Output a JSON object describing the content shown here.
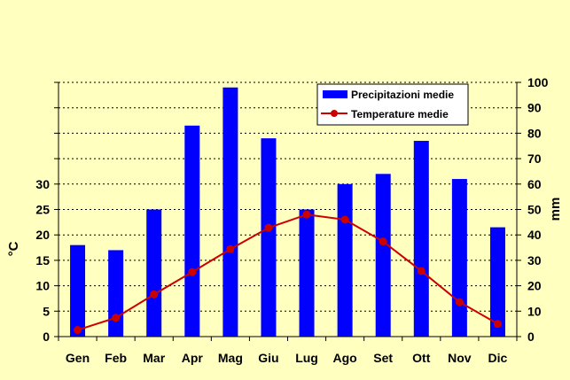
{
  "chart_data": {
    "type": "bar",
    "categories": [
      "Gen",
      "Feb",
      "Mar",
      "Apr",
      "Mag",
      "Giu",
      "Lug",
      "Ago",
      "Set",
      "Ott",
      "Nov",
      "Dic"
    ],
    "series": [
      {
        "name": "Precipitazioni medie",
        "type": "bar",
        "axis": "right",
        "color": "#0000ff",
        "values": [
          36,
          34,
          50,
          83,
          98,
          78,
          50,
          60,
          64,
          77,
          62,
          43
        ]
      },
      {
        "name": "Temperature medie",
        "type": "line",
        "axis": "left",
        "color": "#cc0000",
        "values": [
          1.3,
          3.7,
          8.3,
          12.7,
          17.2,
          21.4,
          24,
          23,
          18.7,
          12.9,
          6.8,
          2.5
        ]
      }
    ],
    "y_left": {
      "label": "°C",
      "ticks": [
        0,
        5,
        10,
        15,
        20,
        25,
        30
      ],
      "range": [
        0,
        50
      ]
    },
    "y_right": {
      "label": "mm",
      "ticks": [
        0,
        10,
        20,
        30,
        40,
        50,
        60,
        70,
        80,
        90,
        100
      ],
      "range": [
        0,
        100
      ]
    },
    "grid": "horizontal-dashed",
    "legend_position": "top-right"
  }
}
